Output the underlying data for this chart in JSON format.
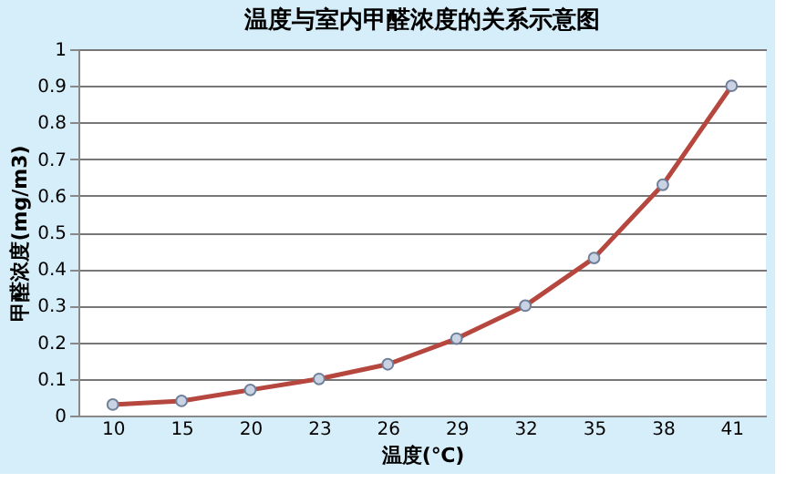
{
  "chart_data": {
    "type": "line",
    "title": "温度与室内甲醛浓度的关系示意图",
    "xlabel": "温度(℃)",
    "ylabel": "甲醛浓度(mg/m3)",
    "categories": [
      "10",
      "15",
      "20",
      "23",
      "26",
      "29",
      "32",
      "35",
      "38",
      "41"
    ],
    "series": [
      {
        "color": "#b5473f",
        "values": [
          0.03,
          0.04,
          0.07,
          0.1,
          0.14,
          0.21,
          0.3,
          0.43,
          0.63,
          0.9
        ]
      }
    ],
    "ylim": [
      0,
      1
    ],
    "yticks": [
      0,
      0.1,
      0.2,
      0.3,
      0.4,
      0.5,
      0.6,
      0.7,
      0.8,
      0.9,
      1
    ],
    "grid": "y",
    "marker": "circle",
    "line_style": "solid"
  }
}
